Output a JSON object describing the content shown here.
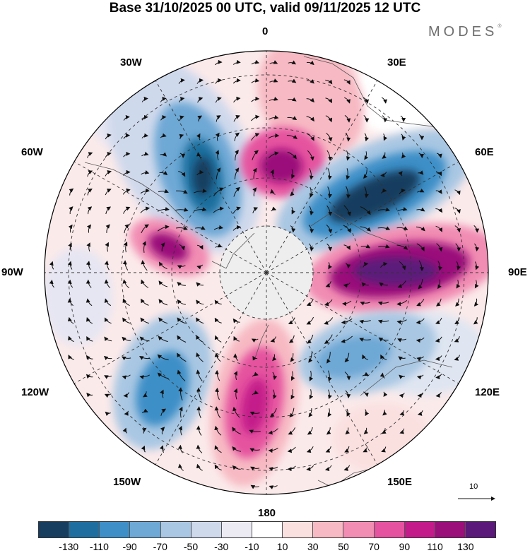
{
  "title": "Base 31/10/2025 00 UTC, valid 09/11/2025 12 UTC",
  "brand": "MODES",
  "brand_mark": "®",
  "longitude_labels": {
    "top": "0",
    "top_right": "30E",
    "right_upper": "60E",
    "right": "90E",
    "right_lower": "120E",
    "bottom_right": "150E",
    "bottom": "180",
    "bottom_left": "150W",
    "left_lower": "120W",
    "left": "90W",
    "left_upper": "60W",
    "top_left": "30W"
  },
  "reference_vector_label": "10",
  "colorbar": {
    "colors": [
      "#173e5f",
      "#1e6f9f",
      "#3e8fc7",
      "#6ea8d5",
      "#a9c7e3",
      "#cfd9ec",
      "#ecebf4",
      "#ffffff",
      "#fbe0e0",
      "#f7b9c3",
      "#f18cb2",
      "#e5529f",
      "#c41b8a",
      "#9a0f7a",
      "#5b1a7a"
    ],
    "tick_labels": [
      "-130",
      "-110",
      "-90",
      "-70",
      "-50",
      "-30",
      "-10",
      "10",
      "30",
      "50",
      "70",
      "90",
      "110",
      "130"
    ]
  }
}
